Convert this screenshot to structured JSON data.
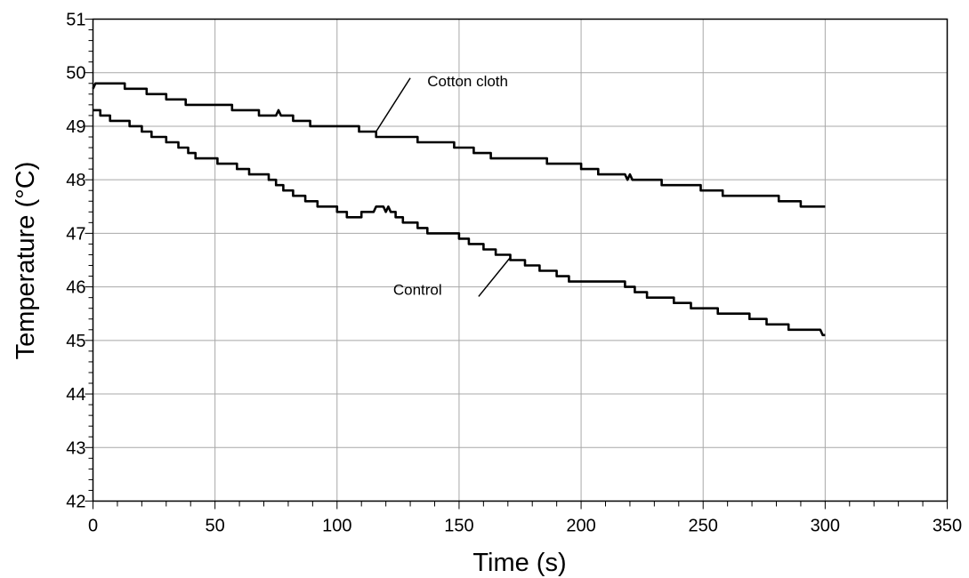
{
  "chart_data": {
    "type": "line",
    "xlabel": "Time (s)",
    "ylabel": "Temperature (°C)",
    "xlim": [
      0,
      350
    ],
    "ylim": [
      42,
      51
    ],
    "x_ticks": [
      "0",
      "50",
      "100",
      "150",
      "200",
      "250",
      "300",
      "350"
    ],
    "y_ticks": [
      "42",
      "43",
      "44",
      "45",
      "46",
      "47",
      "48",
      "49",
      "50",
      "51"
    ],
    "grid": true,
    "series": [
      {
        "name": "Cotton cloth",
        "points": [
          [
            0,
            49.7
          ],
          [
            1,
            49.8
          ],
          [
            13,
            49.8
          ],
          [
            13,
            49.7
          ],
          [
            22,
            49.7
          ],
          [
            22,
            49.6
          ],
          [
            30,
            49.6
          ],
          [
            30,
            49.5
          ],
          [
            38,
            49.5
          ],
          [
            38,
            49.4
          ],
          [
            57,
            49.4
          ],
          [
            57,
            49.3
          ],
          [
            68,
            49.3
          ],
          [
            68,
            49.2
          ],
          [
            75,
            49.2
          ],
          [
            76,
            49.3
          ],
          [
            77,
            49.2
          ],
          [
            82,
            49.2
          ],
          [
            82,
            49.1
          ],
          [
            89,
            49.1
          ],
          [
            89,
            49.0
          ],
          [
            109,
            49.0
          ],
          [
            109,
            48.9
          ],
          [
            116,
            48.9
          ],
          [
            116,
            48.8
          ],
          [
            133,
            48.8
          ],
          [
            133,
            48.7
          ],
          [
            148,
            48.7
          ],
          [
            148,
            48.6
          ],
          [
            156,
            48.6
          ],
          [
            156,
            48.5
          ],
          [
            163,
            48.5
          ],
          [
            163,
            48.4
          ],
          [
            186,
            48.4
          ],
          [
            186,
            48.3
          ],
          [
            200,
            48.3
          ],
          [
            200,
            48.2
          ],
          [
            207,
            48.2
          ],
          [
            207,
            48.1
          ],
          [
            218,
            48.1
          ],
          [
            219,
            48.0
          ],
          [
            220,
            48.1
          ],
          [
            221,
            48.0
          ],
          [
            233,
            48.0
          ],
          [
            233,
            47.9
          ],
          [
            249,
            47.9
          ],
          [
            249,
            47.8
          ],
          [
            258,
            47.8
          ],
          [
            258,
            47.7
          ],
          [
            281,
            47.7
          ],
          [
            281,
            47.6
          ],
          [
            290,
            47.6
          ],
          [
            290,
            47.5
          ],
          [
            300,
            47.5
          ]
        ]
      },
      {
        "name": "Control",
        "points": [
          [
            0,
            49.3
          ],
          [
            3,
            49.3
          ],
          [
            3,
            49.2
          ],
          [
            7,
            49.2
          ],
          [
            7,
            49.1
          ],
          [
            15,
            49.1
          ],
          [
            15,
            49.0
          ],
          [
            20,
            49.0
          ],
          [
            20,
            48.9
          ],
          [
            24,
            48.9
          ],
          [
            24,
            48.8
          ],
          [
            30,
            48.8
          ],
          [
            30,
            48.7
          ],
          [
            35,
            48.7
          ],
          [
            35,
            48.6
          ],
          [
            39,
            48.6
          ],
          [
            39,
            48.5
          ],
          [
            42,
            48.5
          ],
          [
            42,
            48.4
          ],
          [
            51,
            48.4
          ],
          [
            51,
            48.3
          ],
          [
            59,
            48.3
          ],
          [
            59,
            48.2
          ],
          [
            64,
            48.2
          ],
          [
            64,
            48.1
          ],
          [
            72,
            48.1
          ],
          [
            72,
            48.0
          ],
          [
            75,
            48.0
          ],
          [
            75,
            47.9
          ],
          [
            78,
            47.9
          ],
          [
            78,
            47.8
          ],
          [
            82,
            47.8
          ],
          [
            82,
            47.7
          ],
          [
            87,
            47.7
          ],
          [
            87,
            47.6
          ],
          [
            92,
            47.6
          ],
          [
            92,
            47.5
          ],
          [
            100,
            47.5
          ],
          [
            100,
            47.4
          ],
          [
            104,
            47.4
          ],
          [
            104,
            47.3
          ],
          [
            110,
            47.3
          ],
          [
            110,
            47.4
          ],
          [
            115,
            47.4
          ],
          [
            116,
            47.5
          ],
          [
            119,
            47.5
          ],
          [
            120,
            47.4
          ],
          [
            121,
            47.5
          ],
          [
            122,
            47.4
          ],
          [
            124,
            47.4
          ],
          [
            124,
            47.3
          ],
          [
            127,
            47.3
          ],
          [
            127,
            47.2
          ],
          [
            133,
            47.2
          ],
          [
            133,
            47.1
          ],
          [
            137,
            47.1
          ],
          [
            137,
            47.0
          ],
          [
            150,
            47.0
          ],
          [
            150,
            46.9
          ],
          [
            154,
            46.9
          ],
          [
            154,
            46.8
          ],
          [
            160,
            46.8
          ],
          [
            160,
            46.7
          ],
          [
            165,
            46.7
          ],
          [
            165,
            46.6
          ],
          [
            171,
            46.6
          ],
          [
            171,
            46.5
          ],
          [
            177,
            46.5
          ],
          [
            177,
            46.4
          ],
          [
            183,
            46.4
          ],
          [
            183,
            46.3
          ],
          [
            190,
            46.3
          ],
          [
            190,
            46.2
          ],
          [
            195,
            46.2
          ],
          [
            195,
            46.1
          ],
          [
            218,
            46.1
          ],
          [
            218,
            46.0
          ],
          [
            222,
            46.0
          ],
          [
            222,
            45.9
          ],
          [
            227,
            45.9
          ],
          [
            227,
            45.8
          ],
          [
            238,
            45.8
          ],
          [
            238,
            45.7
          ],
          [
            245,
            45.7
          ],
          [
            245,
            45.6
          ],
          [
            256,
            45.6
          ],
          [
            256,
            45.5
          ],
          [
            269,
            45.5
          ],
          [
            269,
            45.4
          ],
          [
            276,
            45.4
          ],
          [
            276,
            45.3
          ],
          [
            285,
            45.3
          ],
          [
            285,
            45.2
          ],
          [
            298,
            45.2
          ],
          [
            299,
            45.1
          ],
          [
            300,
            45.1
          ]
        ]
      }
    ],
    "annotations": [
      {
        "text": "Cotton cloth",
        "label_at": [
          137,
          49.75
        ],
        "line_from": [
          130,
          49.9
        ],
        "line_to": [
          116,
          48.9
        ]
      },
      {
        "text": "Control",
        "label_at": [
          123,
          45.85
        ],
        "line_from": [
          158,
          45.82
        ],
        "line_to": [
          171,
          46.55
        ]
      }
    ]
  }
}
